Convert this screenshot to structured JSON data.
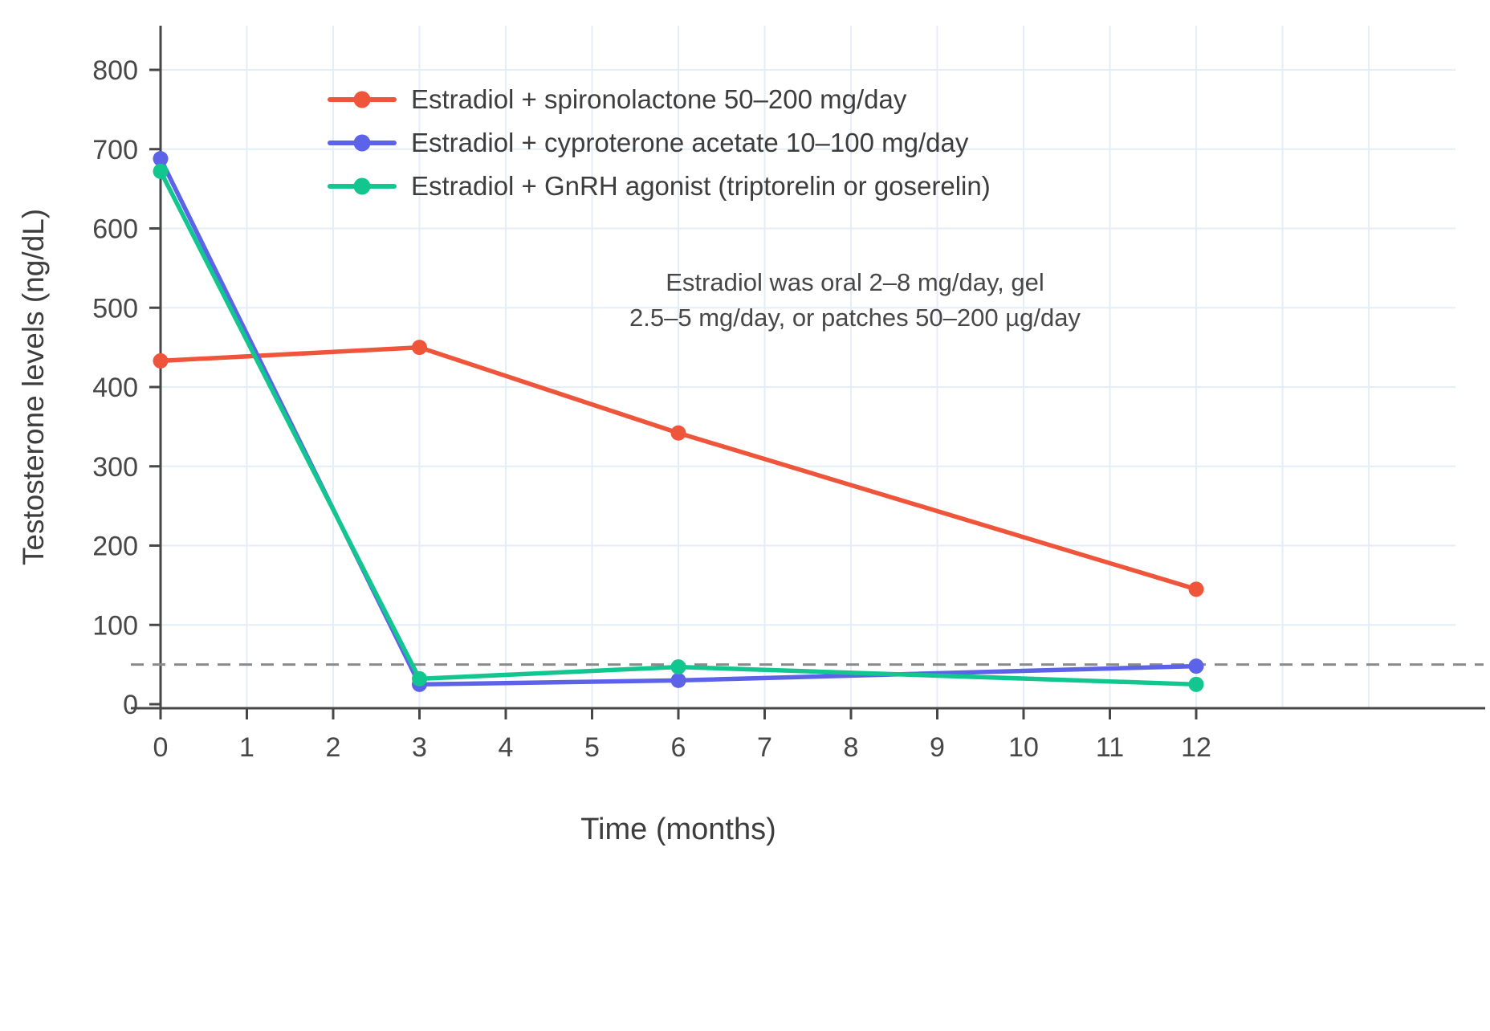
{
  "chart_data": {
    "type": "line",
    "x": [
      0,
      3,
      6,
      12
    ],
    "series": [
      {
        "name": "Estradiol + spironolactone 50–200 mg/day",
        "color": "#EF553B",
        "values": [
          433,
          450,
          342,
          145
        ]
      },
      {
        "name": "Estradiol + cyproterone acetate 10–100 mg/day",
        "color": "#5D63E8",
        "values": [
          688,
          25,
          30,
          48
        ]
      },
      {
        "name": "Estradiol + GnRH agonist (triptorelin or goserelin)",
        "color": "#12C78F",
        "values": [
          672,
          32,
          47,
          25
        ]
      }
    ],
    "xlabel": "Time (months)",
    "ylabel": "Testosterone levels (ng/dL)",
    "xticks": [
      0,
      1,
      2,
      3,
      4,
      5,
      6,
      7,
      8,
      9,
      10,
      11,
      12
    ],
    "yticks": [
      0,
      100,
      200,
      300,
      400,
      500,
      600,
      700,
      800
    ],
    "xlim": [
      0,
      15
    ],
    "ylim": [
      0,
      855
    ],
    "grid": true,
    "legend_position": "upper-left-inset",
    "reference_line": {
      "y": 50,
      "style": "dashed",
      "color": "#8a8a8a"
    },
    "annotation": {
      "line1": "Estradiol was oral 2–8 mg/day, gel",
      "line2": "2.5–5 mg/day, or patches 50–200 µg/day"
    }
  },
  "colors": {
    "grid": "#e4eef8",
    "axis": "#474747",
    "tick_text": "#474747",
    "background": "#ffffff"
  }
}
